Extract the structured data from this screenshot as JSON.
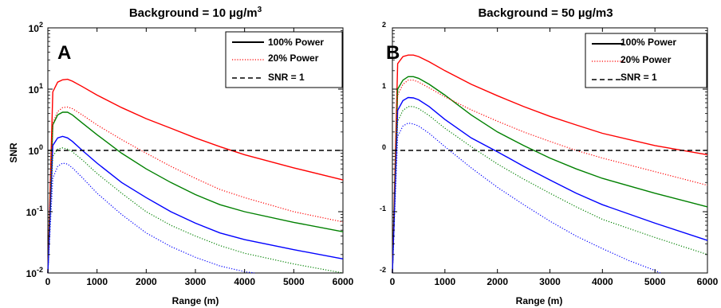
{
  "chart_data": [
    {
      "type": "line",
      "panel_label": "A",
      "title": "Background = 10 µg/m",
      "title_sup": "3",
      "xlabel": "Range (m)",
      "ylabel": "SNR",
      "xlim": [
        0,
        6000
      ],
      "ylim": [
        0.01,
        100
      ],
      "yscale": "log",
      "xticks": [
        "0",
        "1000",
        "2000",
        "3000",
        "4000",
        "5000",
        "6000"
      ],
      "yticks": [
        {
          "base": "10",
          "exp": "2"
        },
        {
          "base": "10",
          "exp": "1"
        },
        {
          "base": "10",
          "exp": "0"
        },
        {
          "base": "10",
          "exp": "-1"
        },
        {
          "base": "10",
          "exp": "-2"
        }
      ],
      "legend": {
        "placement": "top-right",
        "entries": [
          "100% Power",
          "20% Power",
          "SNR = 1"
        ]
      },
      "colors": {
        "red": "#ff0000",
        "green": "#008000",
        "blue": "#0000ff",
        "threshold": "#000000"
      },
      "threshold": 1,
      "series": [
        {
          "power": "100%",
          "style": "solid",
          "color": "#ff0000",
          "x": [
            0,
            100,
            200,
            300,
            400,
            500,
            700,
            1000,
            1500,
            2000,
            2500,
            3000,
            3500,
            4000,
            5000,
            6000
          ],
          "y": [
            0.01,
            9,
            13,
            14.2,
            14.5,
            13.5,
            11,
            8,
            5,
            3.3,
            2.3,
            1.6,
            1.15,
            0.85,
            0.52,
            0.33
          ]
        },
        {
          "power": "100%",
          "style": "solid",
          "color": "#008000",
          "x": [
            0,
            100,
            200,
            300,
            400,
            500,
            700,
            1000,
            1500,
            2000,
            2500,
            3000,
            3500,
            4000,
            5000,
            6000
          ],
          "y": [
            0.01,
            2.6,
            3.8,
            4.2,
            4.2,
            3.8,
            2.8,
            1.8,
            0.9,
            0.5,
            0.3,
            0.19,
            0.13,
            0.1,
            0.067,
            0.047
          ]
        },
        {
          "power": "100%",
          "style": "solid",
          "color": "#0000ff",
          "x": [
            0,
            100,
            200,
            300,
            400,
            500,
            700,
            1000,
            1500,
            2000,
            2500,
            3000,
            3500,
            4000,
            5000,
            6000
          ],
          "y": [
            0.01,
            1.2,
            1.6,
            1.7,
            1.6,
            1.4,
            1.0,
            0.62,
            0.3,
            0.17,
            0.1,
            0.065,
            0.045,
            0.035,
            0.024,
            0.017
          ]
        },
        {
          "power": "20%",
          "style": "dotted",
          "color": "#ff0000",
          "x": [
            0,
            100,
            200,
            300,
            400,
            500,
            700,
            1000,
            1500,
            2000,
            2500,
            3000,
            3500,
            4000,
            5000,
            6000
          ],
          "y": [
            0.01,
            2.8,
            4.3,
            5,
            5.1,
            4.8,
            3.8,
            2.6,
            1.5,
            0.9,
            0.55,
            0.35,
            0.23,
            0.17,
            0.1,
            0.068
          ]
        },
        {
          "power": "20%",
          "style": "dotted",
          "color": "#008000",
          "x": [
            0,
            100,
            200,
            300,
            400,
            500,
            700,
            1000,
            1500,
            2000,
            2500,
            3000,
            3500,
            4000,
            5000,
            6000
          ],
          "y": [
            0.01,
            0.8,
            1.05,
            1.1,
            1.05,
            0.95,
            0.7,
            0.42,
            0.2,
            0.1,
            0.06,
            0.04,
            0.028,
            0.021,
            0.014,
            0.01
          ]
        },
        {
          "power": "20%",
          "style": "dotted",
          "color": "#0000ff",
          "x": [
            0,
            100,
            200,
            300,
            400,
            500,
            700,
            1000,
            1500,
            2000,
            2500,
            3000,
            3500,
            4000,
            4200
          ],
          "y": [
            0.01,
            0.35,
            0.55,
            0.62,
            0.6,
            0.52,
            0.36,
            0.2,
            0.09,
            0.045,
            0.027,
            0.018,
            0.013,
            0.0105,
            0.01
          ]
        }
      ]
    },
    {
      "type": "line",
      "panel_label": "B",
      "title": "Background = 50 µg/m3",
      "xlabel": "Range (m)",
      "ylabel": "",
      "xlim": [
        0,
        6000
      ],
      "ylim": [
        0.01,
        100
      ],
      "yscale": "log",
      "xticks": [
        "0",
        "1000",
        "2000",
        "3000",
        "4000",
        "5000",
        "6000"
      ],
      "yticks": [
        {
          "base": "",
          "exp": "2"
        },
        {
          "base": "",
          "exp": "1"
        },
        {
          "base": "",
          "exp": "0"
        },
        {
          "base": "",
          "exp": "-1"
        },
        {
          "base": "",
          "exp": "-2"
        }
      ],
      "legend": {
        "placement": "top-right",
        "entries": [
          "100% Power",
          "20% Power",
          "SNR = 1"
        ]
      },
      "colors": {
        "red": "#ff0000",
        "green": "#008000",
        "blue": "#0000ff",
        "threshold": "#000000"
      },
      "threshold": 1,
      "series": [
        {
          "power": "100%",
          "style": "solid",
          "color": "#ff0000",
          "x": [
            0,
            100,
            200,
            300,
            400,
            500,
            700,
            1000,
            1500,
            2000,
            2500,
            3000,
            3500,
            4000,
            5000,
            6000
          ],
          "y": [
            0.01,
            26,
            34,
            36,
            36,
            34,
            28,
            20,
            12,
            7.8,
            5.2,
            3.6,
            2.6,
            1.9,
            1.2,
            0.85
          ]
        },
        {
          "power": "100%",
          "style": "solid",
          "color": "#008000",
          "x": [
            0,
            100,
            200,
            300,
            400,
            500,
            700,
            1000,
            1500,
            2000,
            2500,
            3000,
            3500,
            4000,
            5000,
            6000
          ],
          "y": [
            0.01,
            10,
            14,
            16,
            16,
            15,
            12,
            8,
            3.8,
            2,
            1.2,
            0.75,
            0.5,
            0.35,
            0.2,
            0.12
          ]
        },
        {
          "power": "100%",
          "style": "solid",
          "color": "#0000ff",
          "x": [
            0,
            100,
            200,
            300,
            400,
            500,
            700,
            1000,
            1500,
            2000,
            2500,
            3000,
            3500,
            4000,
            5000,
            6000
          ],
          "y": [
            0.01,
            4.5,
            6.5,
            7.3,
            7.2,
            6.7,
            5.2,
            3.2,
            1.6,
            0.95,
            0.55,
            0.33,
            0.2,
            0.13,
            0.065,
            0.034
          ]
        },
        {
          "power": "20%",
          "style": "dotted",
          "color": "#ff0000",
          "x": [
            0,
            100,
            200,
            300,
            400,
            500,
            700,
            1000,
            1500,
            2000,
            2500,
            3000,
            3500,
            4000,
            5000,
            6000
          ],
          "y": [
            0.01,
            8,
            12,
            14,
            14,
            13,
            10.5,
            7.5,
            4.6,
            3,
            2,
            1.4,
            1.0,
            0.75,
            0.45,
            0.27
          ]
        },
        {
          "power": "20%",
          "style": "dotted",
          "color": "#008000",
          "x": [
            0,
            100,
            200,
            300,
            400,
            500,
            700,
            1000,
            1500,
            2000,
            2500,
            3000,
            3500,
            4000,
            5000,
            6000
          ],
          "y": [
            0.01,
            3,
            4.5,
            5.2,
            5.2,
            4.8,
            3.7,
            2.3,
            1.15,
            0.6,
            0.34,
            0.2,
            0.12,
            0.075,
            0.038,
            0.02
          ]
        },
        {
          "power": "20%",
          "style": "dotted",
          "color": "#0000ff",
          "x": [
            0,
            100,
            200,
            300,
            400,
            500,
            700,
            1000,
            1500,
            2000,
            2500,
            3000,
            3500,
            4000,
            4500,
            5000,
            5100
          ],
          "y": [
            0.01,
            1.7,
            2.5,
            2.8,
            2.7,
            2.5,
            1.9,
            1.15,
            0.52,
            0.25,
            0.13,
            0.07,
            0.04,
            0.025,
            0.016,
            0.011,
            0.01
          ]
        }
      ]
    }
  ]
}
